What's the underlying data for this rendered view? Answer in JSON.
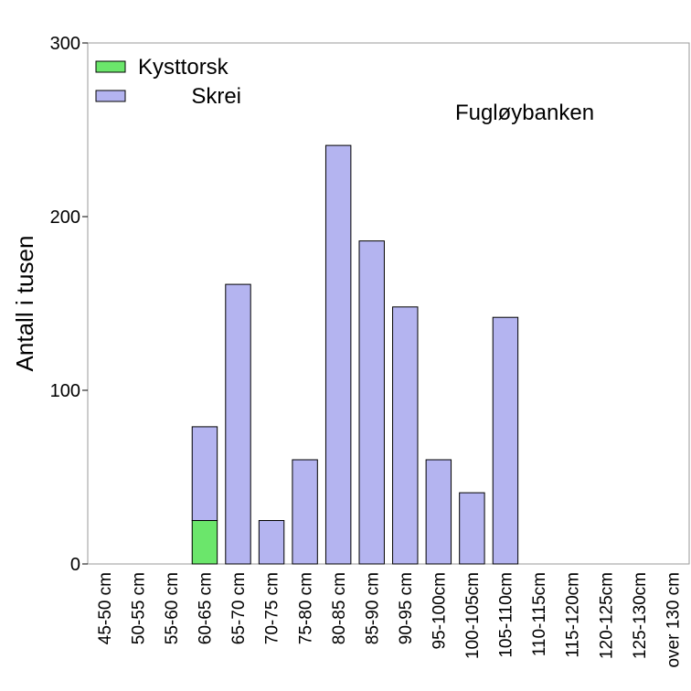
{
  "chart_data": {
    "type": "bar",
    "stacked": true,
    "annotation": "Fugløybanken",
    "xlabel": "",
    "ylabel": "Antall i tusen",
    "ylim": [
      0,
      300
    ],
    "yticks": [
      0,
      100,
      200,
      300
    ],
    "grid": false,
    "legend_position": "top-left",
    "categories": [
      "45-50 cm",
      "50-55 cm",
      "55-60 cm",
      "60-65 cm",
      "65-70 cm",
      "70-75 cm",
      "75-80 cm",
      "80-85 cm",
      "85-90 cm",
      "90-95 cm",
      "95-100cm",
      "100-105cm",
      "105-110cm",
      "110-115cm",
      "115-120cm",
      "120-125cm",
      "125-130cm",
      "over 130 cm"
    ],
    "series": [
      {
        "name": "Kysttorsk",
        "color": "#6be66b",
        "values": [
          0,
          0,
          0,
          25,
          0,
          0,
          0,
          0,
          0,
          0,
          0,
          0,
          0,
          0,
          0,
          0,
          0,
          0
        ]
      },
      {
        "name": "Skrei",
        "color": "#b4b4f0",
        "values": [
          0,
          0,
          0,
          54,
          161,
          25,
          60,
          241,
          186,
          148,
          60,
          41,
          142,
          0,
          0,
          0,
          0,
          0
        ]
      }
    ]
  }
}
